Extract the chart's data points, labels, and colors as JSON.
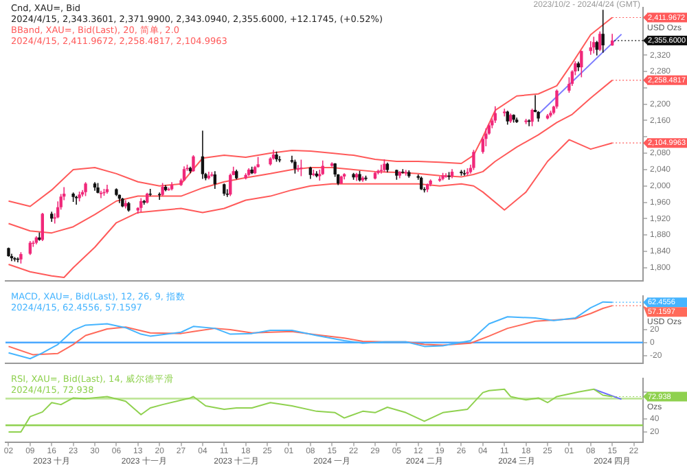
{
  "chart_data": [
    {
      "type": "candlestick",
      "title": "Cnd, XAU=, Bid",
      "subtitle": "2023/10/2 - 2024/4/24 (GMT)",
      "ylabel": "USD Ozs",
      "tick_labels": "y",
      "colors": [
        "#111111",
        "#111111",
        "#111111",
        "#111111",
        "#f0287a",
        "#f0287a",
        "#f0287a",
        "#f0287a",
        "#111111",
        "#f0287a",
        "#111111",
        "#f0287a",
        "#f0287a",
        "#f0287a",
        "#f0287a",
        "#111111",
        "#111111",
        "#f0287a",
        "#f0287a",
        "#f0287a",
        "#111111",
        "#111111",
        "#f0287a",
        "#f0287a",
        "#f0287a",
        "#111111",
        "#111111",
        "#111111",
        "#f0287a",
        "#111111",
        "#f0287a",
        "#f0287a",
        "#111111",
        "#f0287a",
        "#111111",
        "#111111",
        "#f0287a",
        "#111111",
        "#f0287a",
        "#f0287a",
        "#f0287a",
        "#f0287a",
        "#f0287a",
        "#111111",
        "#f0287a",
        "#111111",
        "#111111",
        "#f0287a",
        "#f0287a",
        "#111111",
        "#111111",
        "#111111",
        "#f0287a",
        "#f0287a",
        "#111111",
        "#f0287a",
        "#f0287a",
        "#111111",
        "#f0287a",
        "#f0287a",
        "#f0287a",
        "#f0287a",
        "#111111",
        "#111111",
        "#111111",
        "#111111",
        "#f0287a",
        "#f0287a",
        "#111111",
        "#f0287a",
        "#111111",
        "#f0287a",
        "#f0287a",
        "#f0287a",
        "#111111",
        "#111111",
        "#f0287a",
        "#f0287a",
        "#111111",
        "#f0287a",
        "#111111",
        "#f0287a",
        "#111111",
        "#f0287a",
        "#f0287a",
        "#f0287a",
        "#f0287a",
        "#111111",
        "#111111",
        "#f0287a",
        "#111111",
        "#f0287a",
        "#111111",
        "#111111",
        "#111111",
        "#111111",
        "#f0287a",
        "#f0287a",
        "#f0287a",
        "#f0287a",
        "#f0287a",
        "#111111",
        "#f0287a",
        "#111111",
        "#111111",
        "#f0287a",
        "#f0287a",
        "#f0287a",
        "#f0287a",
        "#f0287a",
        "#f0287a",
        "#f0287a",
        "#f0287a",
        "#f0287a",
        "#111111",
        "#f0287a",
        "#111111",
        "#111111",
        "#f0287a",
        "#111111",
        "#f0287a",
        "#111111",
        "#111111",
        "#f0287a",
        "#f0287a",
        "#f0287a",
        "#f0287a",
        "#f0287a",
        "#f0287a",
        "#f0287a",
        "#111111",
        "#f0287a",
        "#f0287a",
        "#f0287a",
        "#111111",
        "#f0287a",
        "#111111",
        "#f0287a"
      ],
      "annotations": [
        "2024/4/15, 2,343.3601, 2,371.9900, 2,343.0940, 2,355.6000, +12.1745, (+0.52%)",
        "BBand, XAU=, Bid(Last), 20, 简单, 2.0",
        "2024/4/15, 2,411.9672, 2,258.4817, 2,104.9963"
      ],
      "xlim": [
        "2023-10-01",
        "2024-04-25"
      ],
      "ylim": [
        1768,
        2436
      ],
      "yticks": [
        {
          "value": 1800,
          "label": "1,800"
        },
        {
          "value": 1840,
          "label": "1,840"
        },
        {
          "value": 1880,
          "label": "1,880"
        },
        {
          "value": 1920,
          "label": "1,920"
        },
        {
          "value": 1960,
          "label": "1,960"
        },
        {
          "value": 2000,
          "label": "2,000"
        },
        {
          "value": 2040,
          "label": "2,040"
        },
        {
          "value": 2080,
          "label": "2,080"
        },
        {
          "value": 2120,
          "label": null
        },
        {
          "value": 2160,
          "label": "2,160"
        },
        {
          "value": 2200,
          "label": "2,200"
        },
        {
          "value": 2240,
          "label": null
        },
        {
          "value": 2280,
          "label": "2,280"
        },
        {
          "value": 2320,
          "label": "2,320"
        }
      ],
      "x": [
        "2023-10-02",
        "2023-10-03",
        "2023-10-04",
        "2023-10-05",
        "2023-10-06",
        "2023-10-09",
        "2023-10-10",
        "2023-10-11",
        "2023-10-12",
        "2023-10-13",
        "2023-10-16",
        "2023-10-17",
        "2023-10-18",
        "2023-10-19",
        "2023-10-20",
        "2023-10-23",
        "2023-10-24",
        "2023-10-25",
        "2023-10-26",
        "2023-10-27",
        "2023-10-30",
        "2023-10-31",
        "2023-11-01",
        "2023-11-02",
        "2023-11-03",
        "2023-11-06",
        "2023-11-07",
        "2023-11-08",
        "2023-11-09",
        "2023-11-10",
        "2023-11-13",
        "2023-11-14",
        "2023-11-15",
        "2023-11-16",
        "2023-11-17",
        "2023-11-20",
        "2023-11-21",
        "2023-11-22",
        "2023-11-23",
        "2023-11-24",
        "2023-11-27",
        "2023-11-28",
        "2023-11-29",
        "2023-11-30",
        "2023-12-01",
        "2023-12-04",
        "2023-12-05",
        "2023-12-06",
        "2023-12-07",
        "2023-12-08",
        "2023-12-11",
        "2023-12-12",
        "2023-12-13",
        "2023-12-14",
        "2023-12-15",
        "2023-12-18",
        "2023-12-19",
        "2023-12-20",
        "2023-12-21",
        "2023-12-22",
        "2023-12-26",
        "2023-12-27",
        "2023-12-28",
        "2023-12-29",
        "2024-01-02",
        "2024-01-03",
        "2024-01-04",
        "2024-01-05",
        "2024-01-08",
        "2024-01-09",
        "2024-01-10",
        "2024-01-11",
        "2024-01-12",
        "2024-01-15",
        "2024-01-16",
        "2024-01-17",
        "2024-01-18",
        "2024-01-19",
        "2024-01-22",
        "2024-01-23",
        "2024-01-24",
        "2024-01-25",
        "2024-01-26",
        "2024-01-29",
        "2024-01-30",
        "2024-01-31",
        "2024-02-01",
        "2024-02-02",
        "2024-02-05",
        "2024-02-06",
        "2024-02-07",
        "2024-02-08",
        "2024-02-09",
        "2024-02-12",
        "2024-02-13",
        "2024-02-14",
        "2024-02-15",
        "2024-02-16",
        "2024-02-19",
        "2024-02-20",
        "2024-02-21",
        "2024-02-22",
        "2024-02-23",
        "2024-02-26",
        "2024-02-27",
        "2024-02-28",
        "2024-02-29",
        "2024-03-01",
        "2024-03-04",
        "2024-03-05",
        "2024-03-06",
        "2024-03-07",
        "2024-03-08",
        "2024-03-11",
        "2024-03-12",
        "2024-03-13",
        "2024-03-14",
        "2024-03-15",
        "2024-03-18",
        "2024-03-19",
        "2024-03-20",
        "2024-03-21",
        "2024-03-22",
        "2024-03-25",
        "2024-03-26",
        "2024-03-27",
        "2024-03-28",
        "2024-04-01",
        "2024-04-02",
        "2024-04-03",
        "2024-04-04",
        "2024-04-05",
        "2024-04-08",
        "2024-04-09",
        "2024-04-10",
        "2024-04-11",
        "2024-04-12",
        "2024-04-15"
      ],
      "ohlc": [
        [
          1848,
          1849,
          1827,
          1828
        ],
        [
          1828,
          1834,
          1816,
          1823
        ],
        [
          1823,
          1826,
          1815,
          1822
        ],
        [
          1822,
          1825,
          1813,
          1820
        ],
        [
          1820,
          1838,
          1810,
          1833
        ],
        [
          1834,
          1865,
          1831,
          1861
        ],
        [
          1861,
          1866,
          1851,
          1861
        ],
        [
          1861,
          1877,
          1857,
          1874
        ],
        [
          1874,
          1886,
          1866,
          1868
        ],
        [
          1868,
          1934,
          1865,
          1932
        ],
        [
          1932,
          1937,
          1912,
          1920
        ],
        [
          1920,
          1933,
          1908,
          1923
        ],
        [
          1923,
          1962,
          1921,
          1948
        ],
        [
          1948,
          1980,
          1942,
          1974
        ],
        [
          1974,
          1997,
          1965,
          1981
        ],
        [
          1981,
          1984,
          1961,
          1973
        ],
        [
          1973,
          1976,
          1954,
          1970
        ],
        [
          1970,
          1986,
          1962,
          1979
        ],
        [
          1979,
          1990,
          1974,
          1985
        ],
        [
          1985,
          2009,
          1975,
          2006
        ],
        [
          2006,
          2009,
          1988,
          1996
        ],
        [
          1996,
          2007,
          1982,
          1983
        ],
        [
          1983,
          1988,
          1970,
          1983
        ],
        [
          1983,
          1993,
          1976,
          1985
        ],
        [
          1985,
          2003,
          1981,
          1992
        ],
        [
          1992,
          1994,
          1975,
          1978
        ],
        [
          1978,
          1979,
          1958,
          1969
        ],
        [
          1969,
          1971,
          1948,
          1950
        ],
        [
          1950,
          1965,
          1945,
          1958
        ],
        [
          1958,
          1961,
          1937,
          1940
        ],
        [
          1940,
          1948,
          1932,
          1946
        ],
        [
          1946,
          1970,
          1936,
          1963
        ],
        [
          1963,
          1966,
          1954,
          1959
        ],
        [
          1959,
          1983,
          1957,
          1981
        ],
        [
          1981,
          1993,
          1975,
          1980
        ],
        [
          1980,
          1984,
          1966,
          1978
        ],
        [
          1978,
          2007,
          1975,
          1998
        ],
        [
          1998,
          2002,
          1987,
          1990
        ],
        [
          1990,
          1996,
          1988,
          1992
        ],
        [
          1992,
          2009,
          1989,
          2002
        ],
        [
          2002,
          2018,
          2000,
          2014
        ],
        [
          2014,
          2048,
          2012,
          2041
        ],
        [
          2041,
          2052,
          2037,
          2044
        ],
        [
          2044,
          2047,
          2031,
          2036
        ],
        [
          2036,
          2075,
          2035,
          2072
        ],
        [
          2072,
          2135,
          2017,
          2029
        ],
        [
          2029,
          2032,
          2014,
          2019
        ],
        [
          2019,
          2035,
          2016,
          2025
        ],
        [
          2025,
          2034,
          2022,
          2028
        ],
        [
          2028,
          2036,
          1993,
          2004
        ],
        [
          2004,
          2006,
          1976,
          1981
        ],
        [
          1981,
          1992,
          1973,
          1979
        ],
        [
          1979,
          2030,
          1975,
          2027
        ],
        [
          2027,
          2047,
          2026,
          2036
        ],
        [
          2036,
          2040,
          2016,
          2019
        ],
        [
          2019,
          2031,
          2016,
          2027
        ],
        [
          2027,
          2043,
          2024,
          2040
        ],
        [
          2040,
          2047,
          2029,
          2031
        ],
        [
          2031,
          2049,
          2029,
          2046
        ],
        [
          2046,
          2071,
          2045,
          2053
        ],
        [
          2053,
          2070,
          2050,
          2067
        ],
        [
          2067,
          2088,
          2064,
          2077
        ],
        [
          2077,
          2084,
          2059,
          2065
        ],
        [
          2065,
          2073,
          2058,
          2063
        ],
        [
          2063,
          2074,
          2056,
          2059
        ],
        [
          2059,
          2064,
          2030,
          2042
        ],
        [
          2042,
          2051,
          2035,
          2043
        ],
        [
          2043,
          2064,
          2024,
          2045
        ],
        [
          2045,
          2047,
          2017,
          2027
        ],
        [
          2027,
          2040,
          2024,
          2030
        ],
        [
          2030,
          2036,
          2021,
          2024
        ],
        [
          2024,
          2040,
          2013,
          2029
        ],
        [
          2029,
          2062,
          2027,
          2049
        ],
        [
          2049,
          2058,
          2047,
          2055
        ],
        [
          2055,
          2056,
          2022,
          2028
        ],
        [
          2028,
          2029,
          2002,
          2006
        ],
        [
          2006,
          2025,
          2005,
          2023
        ],
        [
          2023,
          2031,
          2016,
          2029
        ],
        [
          2029,
          2032,
          2015,
          2021
        ],
        [
          2021,
          2032,
          2012,
          2029
        ],
        [
          2029,
          2037,
          2011,
          2014
        ],
        [
          2014,
          2024,
          2010,
          2020
        ],
        [
          2020,
          2025,
          2013,
          2018
        ],
        [
          2018,
          2035,
          2016,
          2032
        ],
        [
          2032,
          2040,
          2028,
          2037
        ],
        [
          2037,
          2052,
          2030,
          2039
        ],
        [
          2039,
          2065,
          2034,
          2054
        ],
        [
          2054,
          2057,
          2033,
          2039
        ],
        [
          2039,
          2040,
          2015,
          2025
        ],
        [
          2025,
          2036,
          2019,
          2035
        ],
        [
          2035,
          2041,
          2030,
          2034
        ],
        [
          2034,
          2039,
          2025,
          2034
        ],
        [
          2034,
          2038,
          2020,
          2024
        ],
        [
          2024,
          2028,
          2015,
          2020
        ],
        [
          2020,
          2023,
          1990,
          1992
        ],
        [
          1992,
          1997,
          1984,
          1991
        ],
        [
          1991,
          2006,
          1985,
          2004
        ],
        [
          2004,
          2016,
          1999,
          2013
        ],
        [
          2013,
          2023,
          2010,
          2017
        ],
        [
          2017,
          2032,
          2014,
          2025
        ],
        [
          2025,
          2031,
          2020,
          2025
        ],
        [
          2025,
          2034,
          2015,
          2024
        ],
        [
          2024,
          2041,
          2019,
          2035
        ],
        [
          2035,
          2039,
          2025,
          2031
        ],
        [
          2031,
          2039,
          2025,
          2030
        ],
        [
          2030,
          2043,
          2025,
          2034
        ],
        [
          2034,
          2052,
          2030,
          2044
        ],
        [
          2044,
          2088,
          2039,
          2083
        ],
        [
          2083,
          2120,
          2079,
          2115
        ],
        [
          2115,
          2141,
          2097,
          2128
        ],
        [
          2128,
          2153,
          2125,
          2148
        ],
        [
          2148,
          2165,
          2141,
          2160
        ],
        [
          2160,
          2195,
          2154,
          2178
        ],
        [
          2178,
          2189,
          2170,
          2182
        ],
        [
          2182,
          2184,
          2150,
          2158
        ],
        [
          2158,
          2177,
          2154,
          2174
        ],
        [
          2174,
          2175,
          2155,
          2162
        ],
        [
          2162,
          2167,
          2154,
          2156
        ],
        [
          2156,
          2164,
          2151,
          2160
        ],
        [
          2160,
          2163,
          2146,
          2157
        ],
        [
          2157,
          2189,
          2146,
          2186
        ],
        [
          2186,
          2222,
          2180,
          2181
        ],
        [
          2181,
          2183,
          2157,
          2165
        ],
        [
          2165,
          2176,
          2163,
          2172
        ],
        [
          2172,
          2184,
          2168,
          2179
        ],
        [
          2179,
          2196,
          2175,
          2194
        ],
        [
          2194,
          2236,
          2189,
          2233
        ],
        [
          2233,
          2266,
          2228,
          2250
        ],
        [
          2250,
          2283,
          2245,
          2280
        ],
        [
          2280,
          2305,
          2271,
          2300
        ],
        [
          2300,
          2304,
          2281,
          2290
        ],
        [
          2290,
          2331,
          2266,
          2330
        ],
        [
          2330,
          2354,
          2321,
          2339
        ],
        [
          2339,
          2365,
          2324,
          2352
        ],
        [
          2352,
          2355,
          2319,
          2333
        ],
        [
          2333,
          2378,
          2330,
          2372
        ],
        [
          2372,
          2431,
          2326,
          2344
        ],
        [
          2343.3601,
          2371.99,
          2343.094,
          2355.6
        ]
      ],
      "value_labels": [
        null,
        null,
        null,
        null,
        null,
        null,
        null,
        null,
        null,
        null,
        null,
        null,
        null,
        null,
        null,
        null,
        null,
        null,
        null,
        null,
        null,
        null,
        null,
        null,
        null,
        null,
        null,
        null,
        null,
        null,
        null,
        null,
        null,
        null,
        null,
        null,
        null,
        null,
        null,
        null,
        null,
        null,
        null,
        null,
        null,
        null,
        null,
        null,
        null,
        null,
        null,
        null,
        null,
        null,
        null,
        null,
        null,
        null,
        null,
        null,
        null,
        null,
        null,
        null,
        null,
        null,
        null,
        null,
        null,
        null,
        null,
        null,
        null,
        null,
        null,
        null,
        null,
        null,
        null,
        null,
        null,
        null,
        null,
        null,
        null,
        null,
        null,
        null,
        null,
        null,
        null,
        null,
        null,
        null,
        null,
        null,
        null,
        null,
        null,
        null,
        null,
        null,
        null,
        null,
        null,
        null,
        null,
        null,
        null,
        null,
        null,
        null,
        null,
        null,
        null,
        null,
        null,
        null,
        null,
        null,
        null,
        null,
        null,
        null,
        null,
        null,
        null,
        null,
        null,
        null,
        null,
        null,
        null,
        null,
        null,
        null,
        null,
        "2,355.6000"
      ],
      "series": [
        {
          "type": "line",
          "color": "#ff5a5a",
          "x": [
            "2023-10-02",
            "2023-10-09",
            "2023-10-16",
            "2023-10-23",
            "2023-10-30",
            "2023-11-06",
            "2023-11-13",
            "2023-11-20",
            "2023-11-27",
            "2023-12-04",
            "2023-12-11",
            "2023-12-18",
            "2023-12-26",
            "2024-01-02",
            "2024-01-08",
            "2024-01-15",
            "2024-01-22",
            "2024-01-29",
            "2024-02-05",
            "2024-02-12",
            "2024-02-19",
            "2024-02-26",
            "2024-03-01",
            "2024-03-04",
            "2024-03-08",
            "2024-03-15",
            "2024-03-22",
            "2024-03-28",
            "2024-04-02",
            "2024-04-08",
            "2024-04-15"
          ],
          "values": [
            1963,
            1950,
            1990,
            2040,
            2045,
            2030,
            2010,
            2000,
            2005,
            2068,
            2075,
            2070,
            2080,
            2087,
            2085,
            2080,
            2075,
            2065,
            2060,
            2060,
            2058,
            2055,
            2075,
            2120,
            2185,
            2220,
            2225,
            2245,
            2300,
            2370,
            2411.9672
          ],
          "value_labels": [
            null,
            null,
            null,
            null,
            null,
            null,
            null,
            null,
            null,
            null,
            null,
            null,
            null,
            null,
            null,
            null,
            null,
            null,
            null,
            null,
            null,
            null,
            null,
            null,
            null,
            null,
            null,
            null,
            null,
            null,
            "2,411.9672"
          ]
        },
        {
          "type": "line",
          "color": "#ff5a5a",
          "x": [
            "2023-10-02",
            "2023-10-09",
            "2023-10-16",
            "2023-10-23",
            "2023-10-30",
            "2023-11-06",
            "2023-11-13",
            "2023-11-20",
            "2023-11-27",
            "2023-12-04",
            "2023-12-11",
            "2023-12-18",
            "2023-12-26",
            "2024-01-02",
            "2024-01-08",
            "2024-01-15",
            "2024-01-22",
            "2024-01-29",
            "2024-02-05",
            "2024-02-12",
            "2024-02-19",
            "2024-02-26",
            "2024-03-01",
            "2024-03-04",
            "2024-03-08",
            "2024-03-15",
            "2024-03-22",
            "2024-03-28",
            "2024-04-02",
            "2024-04-08",
            "2024-04-15"
          ],
          "values": [
            1908,
            1890,
            1885,
            1900,
            1930,
            1963,
            1975,
            1975,
            1975,
            1995,
            2010,
            2020,
            2030,
            2040,
            2045,
            2045,
            2040,
            2035,
            2033,
            2030,
            2025,
            2022,
            2028,
            2035,
            2060,
            2095,
            2125,
            2155,
            2175,
            2215,
            2258.4817
          ],
          "value_labels": [
            null,
            null,
            null,
            null,
            null,
            null,
            null,
            null,
            null,
            null,
            null,
            null,
            null,
            null,
            null,
            null,
            null,
            null,
            null,
            null,
            null,
            null,
            null,
            null,
            null,
            null,
            null,
            null,
            null,
            null,
            "2,258.4817"
          ]
        },
        {
          "type": "line",
          "color": "#ff5a5a",
          "x": [
            "2023-10-02",
            "2023-10-09",
            "2023-10-16",
            "2023-10-20",
            "2023-10-23",
            "2023-10-30",
            "2023-11-06",
            "2023-11-13",
            "2023-11-20",
            "2023-11-27",
            "2023-12-04",
            "2023-12-11",
            "2023-12-18",
            "2023-12-26",
            "2024-01-02",
            "2024-01-08",
            "2024-01-15",
            "2024-01-22",
            "2024-01-29",
            "2024-02-05",
            "2024-02-12",
            "2024-02-19",
            "2024-02-26",
            "2024-03-01",
            "2024-03-04",
            "2024-03-11",
            "2024-03-18",
            "2024-03-25",
            "2024-04-01",
            "2024-04-08",
            "2024-04-15"
          ],
          "values": [
            1808,
            1790,
            1780,
            1776,
            1800,
            1850,
            1910,
            1935,
            1940,
            1945,
            1935,
            1945,
            1965,
            1975,
            1990,
            2000,
            2005,
            2005,
            2005,
            2005,
            2005,
            2000,
            2005,
            2000,
            1985,
            1941,
            1985,
            2060,
            2113,
            2090,
            2104.9963
          ],
          "value_labels": [
            null,
            null,
            null,
            null,
            null,
            null,
            null,
            null,
            null,
            null,
            null,
            null,
            null,
            null,
            null,
            null,
            null,
            null,
            null,
            null,
            null,
            null,
            null,
            null,
            null,
            null,
            null,
            null,
            null,
            null,
            "2,104.9963"
          ]
        },
        {
          "type": "line",
          "color": "#7b7bff",
          "x": [
            "2024-03-22",
            "2024-04-18"
          ],
          "values": [
            2175,
            2371
          ]
        }
      ]
    },
    {
      "type": "line",
      "title": "MACD, XAU=, Bid(Last), 12, 26, 9, 指数",
      "ylabel": "USD Ozs",
      "tick_labels": "y",
      "annotations": [
        "2024/4/15, 62.4556, 57.1597"
      ],
      "xlim": [
        "2023-10-01",
        "2024-04-25"
      ],
      "ylim": [
        -32,
        72
      ],
      "yticks": [
        -20,
        0,
        20
      ],
      "ref_lines": [
        {
          "axis": "y",
          "value": 0,
          "color": "#4aa8ff"
        }
      ],
      "series": [
        {
          "type": "line",
          "color": "#45b4ff",
          "x": [
            "2023-10-02",
            "2023-10-09",
            "2023-10-13",
            "2023-10-18",
            "2023-10-23",
            "2023-10-27",
            "2023-11-03",
            "2023-11-09",
            "2023-11-14",
            "2023-11-17",
            "2023-11-27",
            "2023-12-01",
            "2023-12-08",
            "2023-12-13",
            "2023-12-20",
            "2023-12-26",
            "2024-01-02",
            "2024-01-10",
            "2024-01-19",
            "2024-01-25",
            "2024-02-01",
            "2024-02-08",
            "2024-02-14",
            "2024-02-20",
            "2024-02-29",
            "2024-03-06",
            "2024-03-12",
            "2024-03-21",
            "2024-03-27",
            "2024-04-03",
            "2024-04-08",
            "2024-04-12",
            "2024-04-15"
          ],
          "values": [
            -16,
            -25,
            -16,
            -3,
            19,
            27,
            29,
            23,
            13,
            10,
            16,
            25,
            22,
            13,
            14,
            19,
            19,
            11,
            3,
            -1,
            1,
            1,
            -6,
            -5,
            3,
            29,
            40,
            38,
            34,
            38,
            54,
            63,
            62.4556
          ],
          "value_labels": [
            null,
            null,
            null,
            null,
            null,
            null,
            null,
            null,
            null,
            null,
            null,
            null,
            null,
            null,
            null,
            null,
            null,
            null,
            null,
            null,
            null,
            null,
            null,
            null,
            null,
            null,
            null,
            null,
            null,
            null,
            null,
            null,
            "62.4556"
          ]
        },
        {
          "type": "line",
          "color": "#ff6a5a",
          "x": [
            "2023-10-02",
            "2023-10-10",
            "2023-10-18",
            "2023-10-23",
            "2023-10-27",
            "2023-11-03",
            "2023-11-09",
            "2023-11-17",
            "2023-11-27",
            "2023-12-01",
            "2023-12-08",
            "2023-12-13",
            "2023-12-20",
            "2023-12-26",
            "2024-01-02",
            "2024-01-10",
            "2024-01-19",
            "2024-01-25",
            "2024-02-01",
            "2024-02-08",
            "2024-02-14",
            "2024-02-20",
            "2024-02-29",
            "2024-03-06",
            "2024-03-12",
            "2024-03-21",
            "2024-03-27",
            "2024-04-03",
            "2024-04-08",
            "2024-04-12",
            "2024-04-15"
          ],
          "values": [
            -6,
            -19,
            -17,
            -3,
            11,
            21,
            24,
            15,
            14,
            17,
            22,
            20,
            15,
            16,
            17,
            12,
            7,
            2,
            1,
            1,
            -3,
            -4,
            -1,
            10,
            22,
            33,
            35,
            37,
            45,
            53,
            57.1597
          ],
          "value_labels": [
            null,
            null,
            null,
            null,
            null,
            null,
            null,
            null,
            null,
            null,
            null,
            null,
            null,
            null,
            null,
            null,
            null,
            null,
            null,
            null,
            null,
            null,
            null,
            null,
            null,
            null,
            null,
            null,
            null,
            null,
            "57.1597"
          ]
        }
      ]
    },
    {
      "type": "line",
      "title": "RSI, XAU=, Bid(Last), 14, 威尔德平滑",
      "ylabel": "Ozs",
      "annotations": [
        "2024/4/15, 72.938"
      ],
      "x2lim": [
        "2023-10-01",
        "2024-04-25"
      ],
      "x2ticks": [
        {
          "value": "2023-10-16",
          "label": "2023 十月"
        },
        {
          "value": "2023-11-15",
          "label": "2023 十一月"
        },
        {
          "value": "2023-12-15",
          "label": "2023 十二月"
        },
        {
          "value": "2024-01-15",
          "label": "2024 一月"
        },
        {
          "value": "2024-02-14",
          "label": "2024 二月"
        },
        {
          "value": "2024-03-15",
          "label": "2024 三月"
        },
        {
          "value": "2024-04-15",
          "label": "2024 四月"
        }
      ],
      "xlim": [
        "2023-10-01",
        "2024-04-25"
      ],
      "ylim": [
        5,
        100
      ],
      "yticks": [
        20,
        40,
        {
          "value": 80,
          "label": null
        }
      ],
      "xticks": [
        {
          "value": "2023-10-02",
          "label": "02"
        },
        {
          "value": "2023-10-09",
          "label": "09"
        },
        {
          "value": "2023-10-16",
          "label": "16"
        },
        {
          "value": "2023-10-23",
          "label": "23"
        },
        {
          "value": "2023-10-30",
          "label": "30"
        },
        {
          "value": "2023-11-06",
          "label": "06"
        },
        {
          "value": "2023-11-13",
          "label": "13"
        },
        {
          "value": "2023-11-20",
          "label": "20"
        },
        {
          "value": "2023-11-27",
          "label": "27"
        },
        {
          "value": "2023-12-04",
          "label": "04"
        },
        {
          "value": "2023-12-11",
          "label": "11"
        },
        {
          "value": "2023-12-18",
          "label": "18"
        },
        {
          "value": "2023-12-25",
          "label": "25"
        },
        {
          "value": "2024-01-01",
          "label": "01"
        },
        {
          "value": "2024-01-08",
          "label": "08"
        },
        {
          "value": "2024-01-15",
          "label": "15"
        },
        {
          "value": "2024-01-22",
          "label": "22"
        },
        {
          "value": "2024-01-29",
          "label": "29"
        },
        {
          "value": "2024-02-05",
          "label": "05"
        },
        {
          "value": "2024-02-12",
          "label": "12"
        },
        {
          "value": "2024-02-19",
          "label": "19"
        },
        {
          "value": "2024-02-26",
          "label": "26"
        },
        {
          "value": "2024-03-04",
          "label": "04"
        },
        {
          "value": "2024-03-11",
          "label": "11"
        },
        {
          "value": "2024-03-18",
          "label": "18"
        },
        {
          "value": "2024-03-25",
          "label": "25"
        },
        {
          "value": "2024-04-01",
          "label": "01"
        },
        {
          "value": "2024-04-08",
          "label": "08"
        },
        {
          "value": "2024-04-15",
          "label": "15"
        },
        {
          "value": "2024-04-22",
          "label": "22"
        }
      ],
      "ref_lines": [
        {
          "axis": "y",
          "value": 70,
          "color": "#bfe69a"
        },
        {
          "axis": "y",
          "value": 30,
          "color": "#8fd14f"
        }
      ],
      "series": [
        {
          "type": "line",
          "color": "#8fd14f",
          "x": [
            "2023-10-02",
            "2023-10-06",
            "2023-10-09",
            "2023-10-13",
            "2023-10-16",
            "2023-10-19",
            "2023-10-23",
            "2023-10-27",
            "2023-11-03",
            "2023-11-09",
            "2023-11-14",
            "2023-11-17",
            "2023-11-21",
            "2023-11-30",
            "2023-12-01",
            "2023-12-05",
            "2023-12-11",
            "2023-12-15",
            "2023-12-20",
            "2023-12-26",
            "2024-01-02",
            "2024-01-10",
            "2024-01-16",
            "2024-01-19",
            "2024-01-25",
            "2024-01-29",
            "2024-02-02",
            "2024-02-08",
            "2024-02-14",
            "2024-02-20",
            "2024-02-28",
            "2024-03-04",
            "2024-03-06",
            "2024-03-11",
            "2024-03-13",
            "2024-03-18",
            "2024-03-22",
            "2024-03-25",
            "2024-03-28",
            "2024-04-04",
            "2024-04-09",
            "2024-04-12",
            "2024-04-15"
          ],
          "values": [
            20,
            20,
            43,
            50,
            64,
            61,
            71,
            70,
            73,
            66,
            46,
            56,
            61,
            71,
            73,
            59,
            54,
            56,
            56,
            64,
            59,
            51,
            49,
            41,
            51,
            49,
            57,
            49,
            36,
            49,
            54,
            79,
            82,
            84,
            73,
            68,
            71,
            64,
            73,
            80,
            84,
            75,
            72.938
          ],
          "value_labels": [
            null,
            null,
            null,
            null,
            null,
            null,
            null,
            null,
            null,
            null,
            null,
            null,
            null,
            null,
            null,
            null,
            null,
            null,
            null,
            null,
            null,
            null,
            null,
            null,
            null,
            null,
            null,
            null,
            null,
            null,
            null,
            null,
            null,
            null,
            null,
            null,
            null,
            null,
            null,
            null,
            null,
            null,
            "72.938"
          ]
        },
        {
          "type": "line",
          "color": "#6b6bff",
          "x": [
            "2024-04-09",
            "2024-04-18"
          ],
          "values": [
            84,
            69
          ]
        }
      ]
    }
  ]
}
